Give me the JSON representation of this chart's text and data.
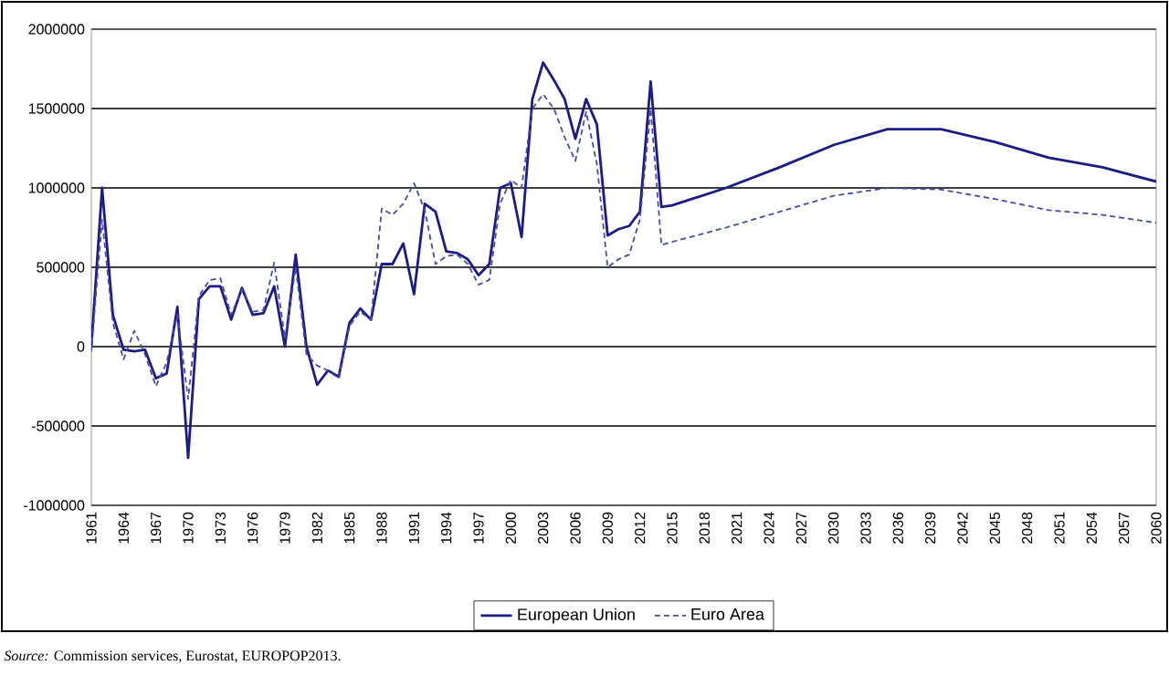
{
  "chart_data": {
    "type": "line",
    "x": [
      1961,
      1962,
      1963,
      1964,
      1965,
      1966,
      1967,
      1968,
      1969,
      1970,
      1971,
      1972,
      1973,
      1974,
      1975,
      1976,
      1977,
      1978,
      1979,
      1980,
      1981,
      1982,
      1983,
      1984,
      1985,
      1986,
      1987,
      1988,
      1989,
      1990,
      1991,
      1992,
      1993,
      1994,
      1995,
      1996,
      1997,
      1998,
      1999,
      2000,
      2001,
      2002,
      2003,
      2004,
      2005,
      2006,
      2007,
      2008,
      2009,
      2010,
      2011,
      2012,
      2013,
      2014,
      2015,
      2020,
      2025,
      2030,
      2035,
      2040,
      2045,
      2050,
      2055,
      2060
    ],
    "series": [
      {
        "name": "European Union",
        "color": "#1c1c86",
        "line_style": "solid",
        "values": [
          0,
          1000000,
          200000,
          -20000,
          -30000,
          -20000,
          -200000,
          -170000,
          250000,
          -700000,
          300000,
          380000,
          380000,
          170000,
          370000,
          200000,
          210000,
          380000,
          0,
          580000,
          0,
          -240000,
          -150000,
          -190000,
          150000,
          240000,
          170000,
          520000,
          520000,
          650000,
          330000,
          900000,
          850000,
          600000,
          590000,
          550000,
          450000,
          520000,
          1000000,
          1030000,
          690000,
          1560000,
          1790000,
          1680000,
          1560000,
          1310000,
          1560000,
          1400000,
          700000,
          740000,
          760000,
          850000,
          1670000,
          880000,
          890000,
          1000000,
          1130000,
          1270000,
          1370000,
          1370000,
          1290000,
          1190000,
          1130000,
          1040000
        ]
      },
      {
        "name": "Euro Area",
        "color": "#4a4aa8",
        "line_style": "dashed",
        "values": [
          -30000,
          800000,
          150000,
          -80000,
          100000,
          -50000,
          -250000,
          -100000,
          200000,
          -330000,
          320000,
          420000,
          430000,
          200000,
          360000,
          220000,
          230000,
          530000,
          50000,
          500000,
          -50000,
          -120000,
          -150000,
          -200000,
          130000,
          220000,
          170000,
          870000,
          830000,
          900000,
          1030000,
          860000,
          520000,
          570000,
          580000,
          520000,
          390000,
          420000,
          900000,
          1050000,
          1000000,
          1500000,
          1590000,
          1500000,
          1320000,
          1170000,
          1480000,
          1150000,
          500000,
          550000,
          580000,
          800000,
          1500000,
          640000,
          660000,
          750000,
          850000,
          950000,
          1000000,
          990000,
          930000,
          860000,
          830000,
          780000
        ]
      }
    ],
    "xlim": [
      1961,
      2060
    ],
    "xticks": [
      1961,
      1964,
      1967,
      1970,
      1973,
      1976,
      1979,
      1982,
      1985,
      1988,
      1991,
      1994,
      1997,
      2000,
      2003,
      2006,
      2009,
      2012,
      2015,
      2018,
      2021,
      2024,
      2027,
      2030,
      2033,
      2036,
      2039,
      2042,
      2045,
      2048,
      2051,
      2054,
      2057,
      2060
    ],
    "ylim": [
      -1000000,
      2000000
    ],
    "yticks": [
      -1000000,
      -500000,
      0,
      500000,
      1000000,
      1500000,
      2000000
    ],
    "grid": "y",
    "legend": "bottom",
    "marker": "none",
    "annotations": [
      "*Source:* Commission services, Eurostat, EUROPOP2013."
    ]
  }
}
